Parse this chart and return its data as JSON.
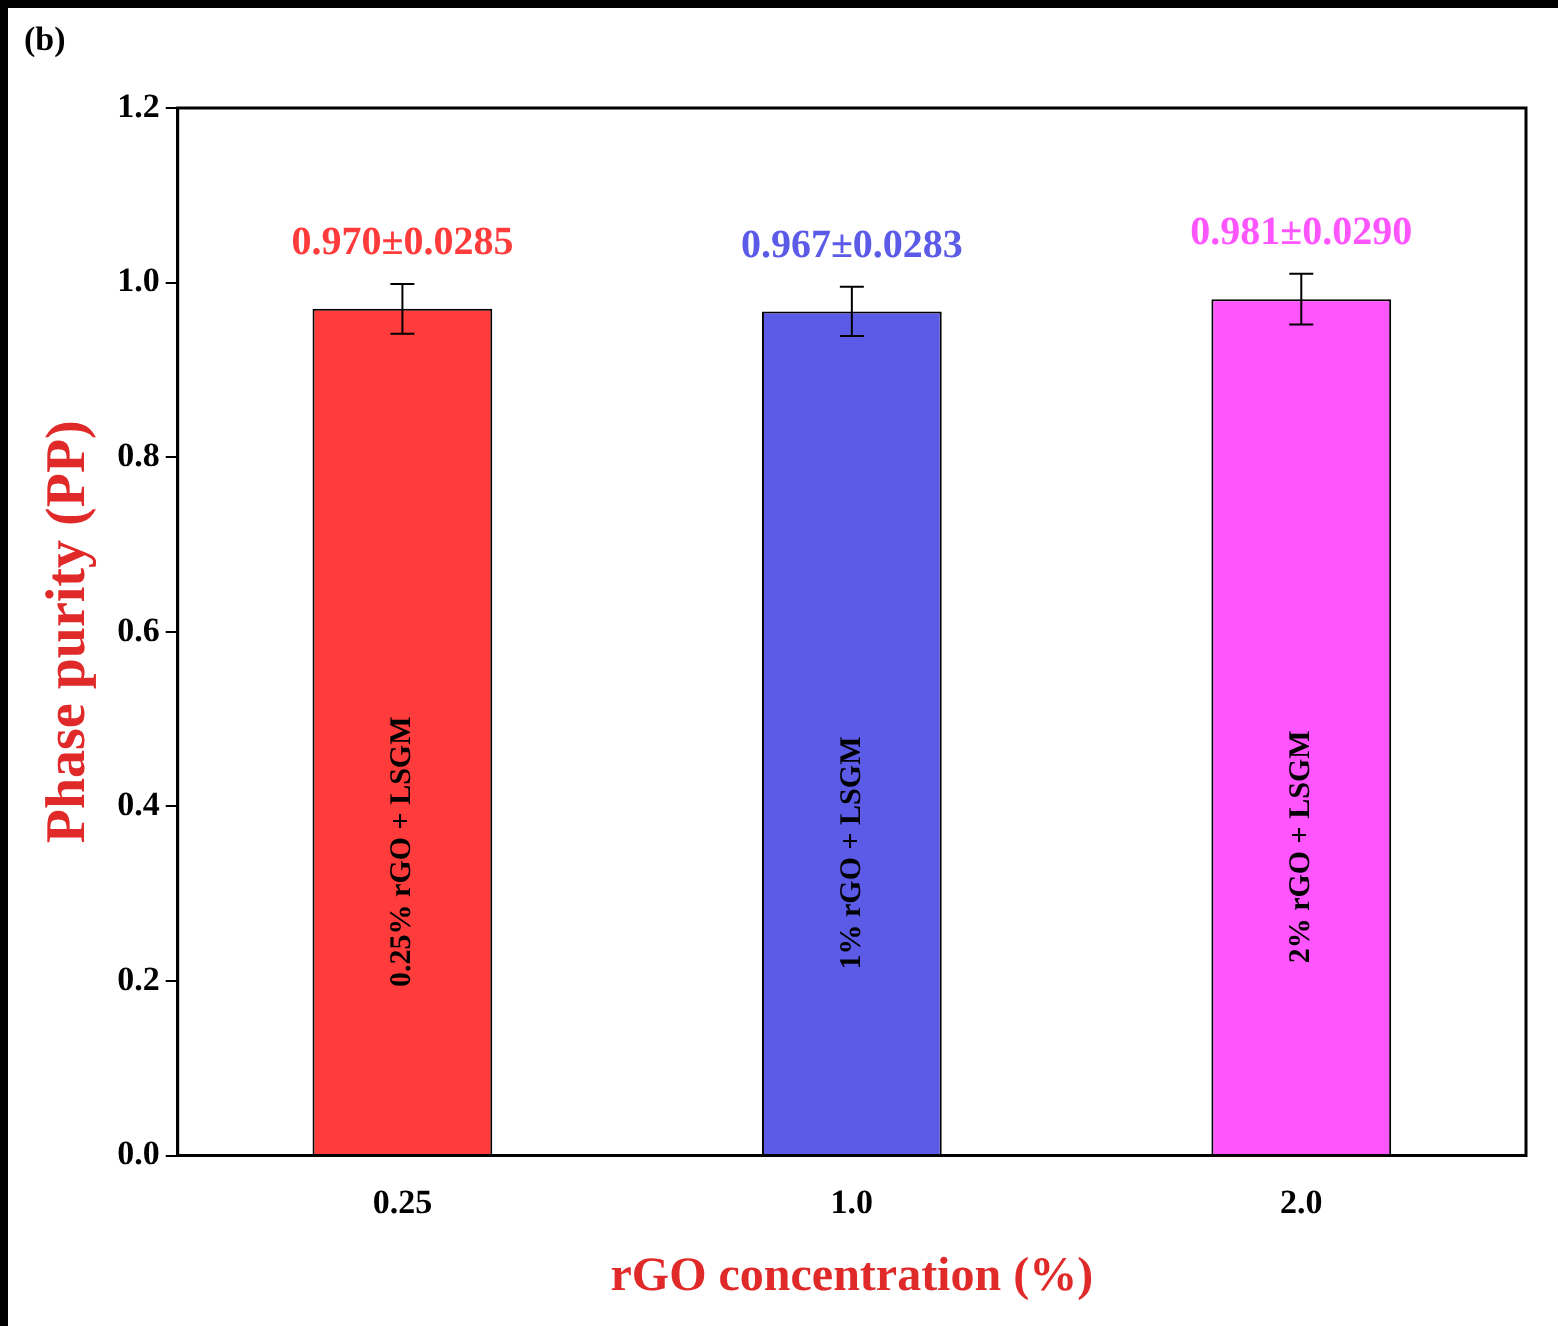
{
  "chart_data": {
    "type": "bar",
    "xlabel": "rGO concentration (%)",
    "ylabel": "Phase purity (PP)",
    "categories": [
      "0.25",
      "1.0",
      "2.0"
    ],
    "values": [
      0.97,
      0.967,
      0.981
    ],
    "errors": [
      0.0285,
      0.0283,
      0.029
    ],
    "value_labels": [
      "0.970±0.0285",
      "0.967±0.0283",
      "0.981±0.0290"
    ],
    "colors": [
      "#ff3b3b",
      "#5b5be8",
      "#ff55ff"
    ],
    "ylim": [
      0,
      1.2
    ],
    "yticks": [
      {
        "value": 0,
        "label": "0.0"
      },
      {
        "value": 0.2,
        "label": "0.2"
      },
      {
        "value": 0.4,
        "label": "0.4"
      },
      {
        "value": 0.6,
        "label": "0.6"
      },
      {
        "value": 0.8,
        "label": "0.8"
      },
      {
        "value": 1.0,
        "label": "1.0"
      },
      {
        "value": 1.2,
        "label": "1.2"
      }
    ],
    "grid": false,
    "legend": false,
    "annotations": [
      "(b)",
      "0.25% rGO + LSGM",
      "1% rGO + LSGM",
      "2% rGO + LSGM"
    ]
  }
}
